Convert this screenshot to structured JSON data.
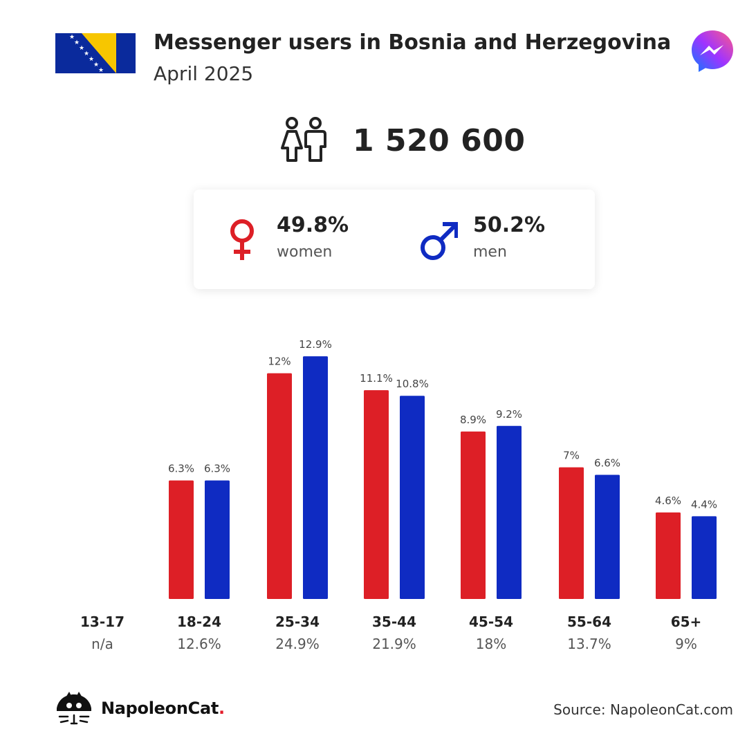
{
  "header": {
    "title": "Messenger users in Bosnia and Herzegovina",
    "subtitle": "April 2025"
  },
  "total": {
    "value": "1 520 600"
  },
  "gender": {
    "women": {
      "percent": "49.8%",
      "label": "women"
    },
    "men": {
      "percent": "50.2%",
      "label": "men"
    }
  },
  "colors": {
    "women": "#dd1f26",
    "men": "#0f2bc2"
  },
  "icons": [
    "bosnia-flag-icon",
    "messenger-logo-icon",
    "people-icon",
    "female-symbol-icon",
    "male-symbol-icon",
    "napoleoncat-logo-icon"
  ],
  "chart_data": {
    "type": "bar",
    "categories": [
      "13-17",
      "18-24",
      "25-34",
      "35-44",
      "45-54",
      "55-64",
      "65+"
    ],
    "category_totals": [
      "n/a",
      "12.6%",
      "24.9%",
      "21.9%",
      "18%",
      "13.7%",
      "9%"
    ],
    "series": [
      {
        "values": [
          null,
          6.3,
          12,
          11.1,
          8.9,
          7,
          4.6
        ],
        "labels": [
          "",
          "6.3%",
          "12%",
          "11.1%",
          "8.9%",
          "7%",
          "4.6%"
        ],
        "color": "#dd1f26"
      },
      {
        "values": [
          null,
          6.3,
          12.9,
          10.8,
          9.2,
          6.6,
          4.4
        ],
        "labels": [
          "",
          "6.3%",
          "12.9%",
          "10.8%",
          "9.2%",
          "6.6%",
          "4.4%"
        ],
        "color": "#0f2bc2"
      }
    ],
    "grid": false
  },
  "footer": {
    "brand_name": "NapoleonCat",
    "brand_dot": ".",
    "source": "Source: NapoleonCat.com"
  }
}
